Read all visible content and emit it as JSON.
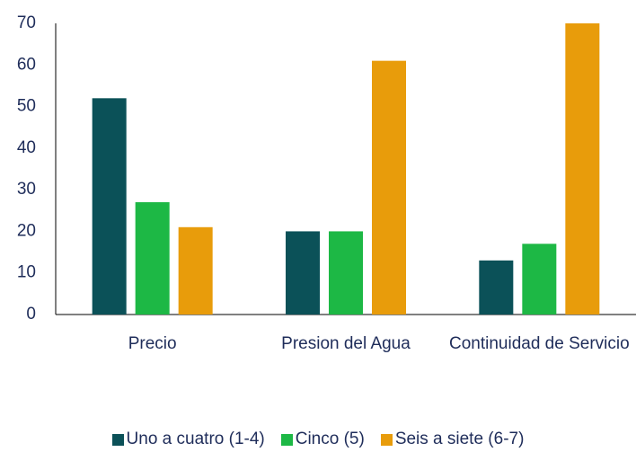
{
  "chart_data": {
    "type": "bar",
    "categories": [
      "Precio",
      "Presion del Agua",
      "Continuidad de Servicio"
    ],
    "series": [
      {
        "name": "Uno a cuatro (1-4)",
        "color": "#0b5158",
        "values": [
          52,
          20,
          13
        ]
      },
      {
        "name": "Cinco (5)",
        "color": "#1db845",
        "values": [
          27,
          20,
          17
        ]
      },
      {
        "name": "Seis a siete (6-7)",
        "color": "#e89c0b",
        "values": [
          21,
          61,
          70
        ]
      }
    ],
    "ylim": [
      0,
      70
    ],
    "yticks": [
      0,
      10,
      20,
      30,
      40,
      50,
      60,
      70
    ],
    "grid": false,
    "legend": "bottom"
  }
}
